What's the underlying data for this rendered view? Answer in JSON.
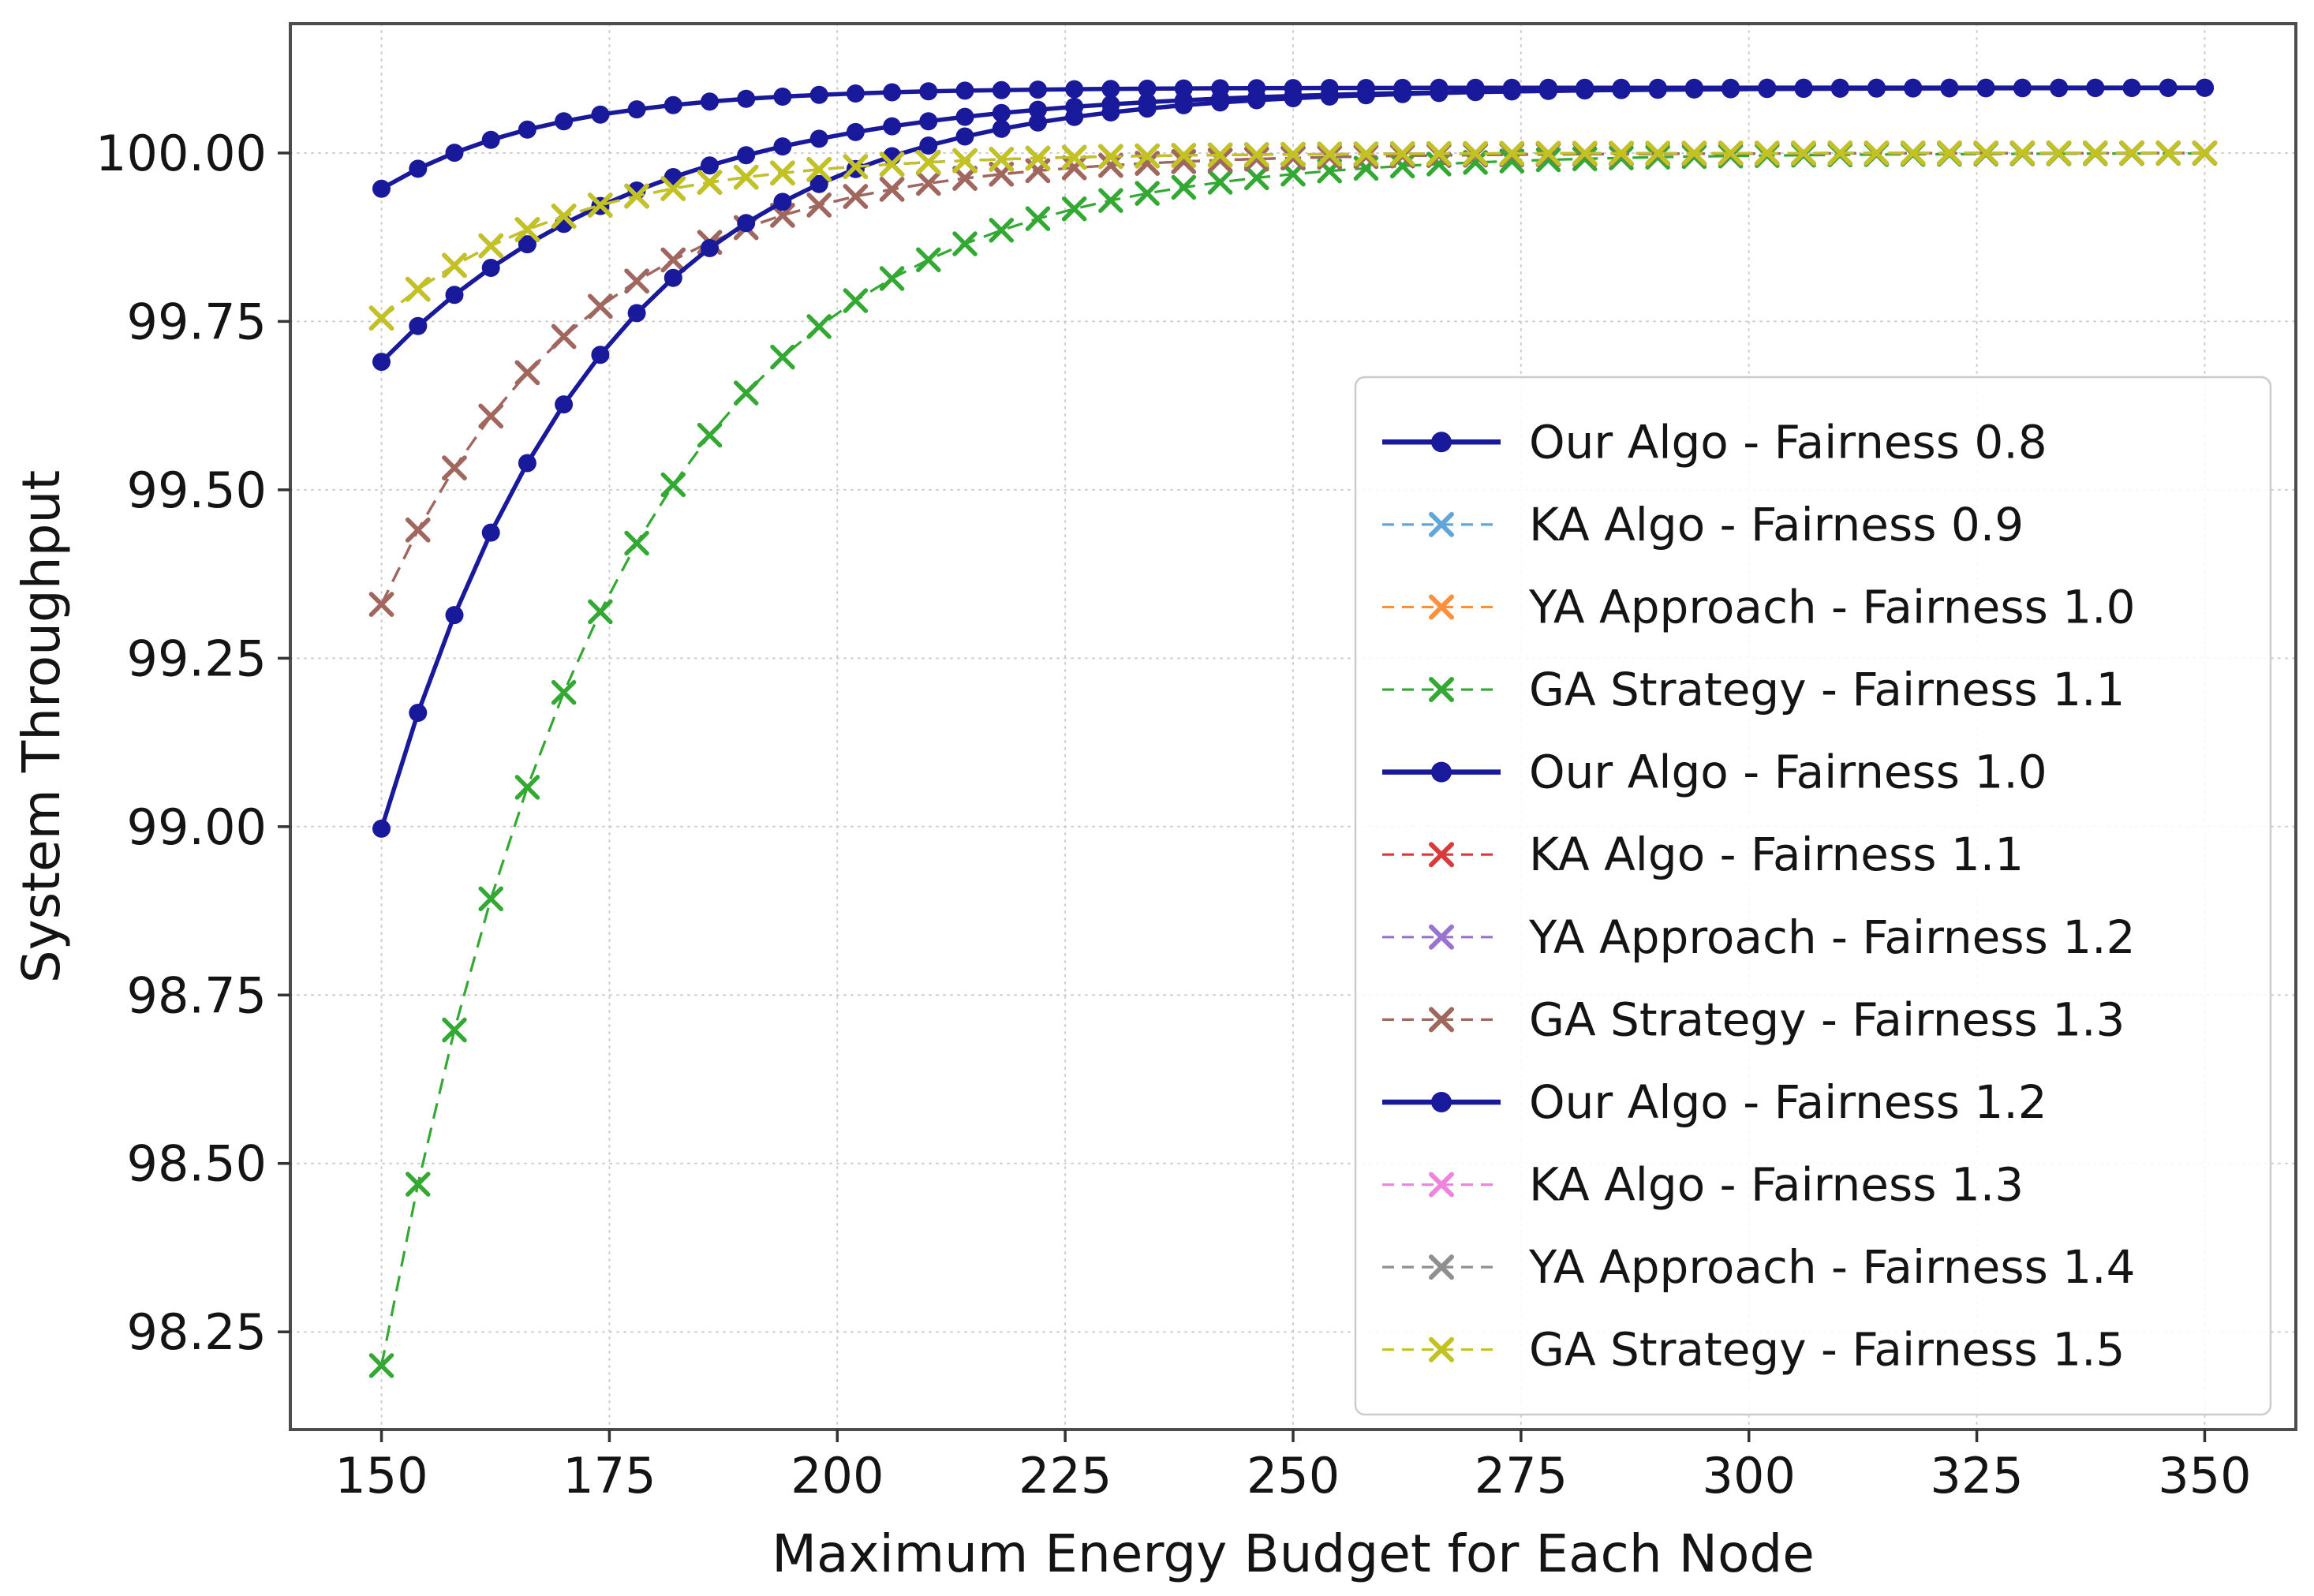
{
  "chart_data": {
    "type": "line",
    "title": "",
    "xlabel": "Maximum Energy Budget for Each Node",
    "ylabel": "System Throughput",
    "xlim": [
      140,
      360
    ],
    "ylim": [
      98.105,
      100.192
    ],
    "grid": true,
    "grid_style": "dotted",
    "legend_position": "center right",
    "x_ticks": [
      150,
      175,
      200,
      225,
      250,
      275,
      300,
      325,
      350
    ],
    "x_tick_labels": [
      "150",
      "175",
      "200",
      "225",
      "250",
      "275",
      "300",
      "325",
      "350"
    ],
    "y_ticks": [
      98.25,
      98.5,
      98.75,
      99.0,
      99.25,
      99.5,
      99.75,
      100.0
    ],
    "y_tick_labels": [
      "98.25",
      "98.50",
      "98.75",
      "99.00",
      "99.25",
      "99.50",
      "99.75",
      "100.00"
    ],
    "x_sampling": {
      "start": 150,
      "stop": 350,
      "step": 4
    },
    "series": [
      {
        "label": "Our Algo - Fairness 0.8",
        "color": "#19199c",
        "line": "solid",
        "marker": "circle",
        "model": {
          "start": 99.947,
          "plateau": 100.097,
          "rate": 0.055
        },
        "values_at_x_ticks": [
          99.947,
          100.059,
          100.087,
          100.095,
          100.096,
          100.097,
          100.097,
          100.097,
          100.097
        ]
      },
      {
        "label": "KA Algo - Fairness 0.9",
        "color": "#60a6d9",
        "line": "dashed",
        "marker": "x",
        "model": {
          "start": 99.755,
          "plateau": 100.0,
          "rate": 0.048
        },
        "values_at_x_ticks": [
          99.755,
          99.926,
          99.978,
          99.993,
          99.998,
          99.999,
          100.0,
          100.0,
          100.0
        ]
      },
      {
        "label": "YA Approach - Fairness 1.0",
        "color": "#fd8f3d",
        "line": "dashed",
        "marker": "x",
        "model": {
          "start": 99.755,
          "plateau": 100.0,
          "rate": 0.048
        },
        "values_at_x_ticks": [
          99.755,
          99.926,
          99.978,
          99.993,
          99.998,
          99.999,
          100.0,
          100.0,
          100.0
        ]
      },
      {
        "label": "GA Strategy - Fairness 1.1",
        "color": "#33a833",
        "line": "dashed",
        "marker": "x",
        "model": {
          "start": 98.2,
          "plateau": 100.0,
          "rate": 0.0405
        },
        "values_at_x_ticks": [
          98.2,
          99.346,
          99.762,
          99.914,
          99.969,
          99.989,
          99.996,
          99.998,
          99.999
        ]
      },
      {
        "label": "Our Algo - Fairness 1.0",
        "color": "#19199c",
        "line": "solid",
        "marker": "circle",
        "model": {
          "start": 99.69,
          "plateau": 100.097,
          "rate": 0.035
        },
        "values_at_x_ticks": [
          99.69,
          99.927,
          100.026,
          100.068,
          100.085,
          100.092,
          100.095,
          100.096,
          100.097
        ]
      },
      {
        "label": "KA Algo - Fairness 1.1",
        "color": "#d93b3b",
        "line": "dashed",
        "marker": "x",
        "model": {
          "start": 99.33,
          "plateau": 100.0,
          "rate": 0.045
        },
        "values_at_x_ticks": [
          99.33,
          99.782,
          99.929,
          99.977,
          99.993,
          99.998,
          99.999,
          100.0,
          100.0
        ]
      },
      {
        "label": "YA Approach - Fairness 1.2",
        "color": "#9873d1",
        "line": "dashed",
        "marker": "x",
        "model": {
          "start": 99.33,
          "plateau": 100.0,
          "rate": 0.045
        },
        "values_at_x_ticks": [
          99.33,
          99.782,
          99.929,
          99.977,
          99.993,
          99.998,
          99.999,
          100.0,
          100.0
        ]
      },
      {
        "label": "GA Strategy - Fairness 1.3",
        "color": "#a0685c",
        "line": "dashed",
        "marker": "x",
        "model": {
          "start": 99.33,
          "plateau": 100.0,
          "rate": 0.045
        },
        "values_at_x_ticks": [
          99.33,
          99.782,
          99.929,
          99.977,
          99.993,
          99.998,
          99.999,
          100.0,
          100.0
        ]
      },
      {
        "label": "Our Algo - Fairness 1.2",
        "color": "#19199c",
        "line": "solid",
        "marker": "circle",
        "model": {
          "start": 98.997,
          "plateau": 100.097,
          "rate": 0.0425
        },
        "values_at_x_ticks": [
          98.997,
          99.717,
          99.966,
          100.052,
          100.081,
          100.092,
          100.095,
          100.096,
          100.097
        ]
      },
      {
        "label": "KA Algo - Fairness 1.3",
        "color": "#ee84de",
        "line": "dashed",
        "marker": "x",
        "model": {
          "start": 99.755,
          "plateau": 100.0,
          "rate": 0.048
        },
        "values_at_x_ticks": [
          99.755,
          99.926,
          99.978,
          99.993,
          99.998,
          99.999,
          100.0,
          100.0,
          100.0
        ]
      },
      {
        "label": "YA Approach - Fairness 1.4",
        "color": "#8f8f8f",
        "line": "dashed",
        "marker": "x",
        "model": {
          "start": 99.755,
          "plateau": 100.0,
          "rate": 0.048
        },
        "values_at_x_ticks": [
          99.755,
          99.926,
          99.978,
          99.993,
          99.998,
          99.999,
          100.0,
          100.0,
          100.0
        ]
      },
      {
        "label": "GA Strategy - Fairness 1.5",
        "color": "#c2c220",
        "line": "dashed",
        "marker": "x",
        "model": {
          "start": 99.755,
          "plateau": 100.0,
          "rate": 0.048
        },
        "values_at_x_ticks": [
          99.755,
          99.926,
          99.978,
          99.993,
          99.998,
          99.999,
          100.0,
          100.0,
          100.0
        ]
      }
    ],
    "colors": {
      "grid": "#c8c8c8",
      "spine": "#4d4d4d",
      "tick": "#333333",
      "text": "#141414",
      "legend_border": "#cccccc",
      "legend_bg": "rgba(255,255,255,0.85)"
    }
  }
}
